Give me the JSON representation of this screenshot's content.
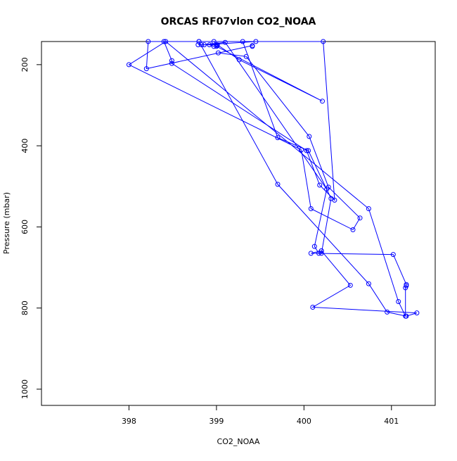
{
  "chart_data": {
    "type": "line",
    "title": "ORCAS RF07vlon CO2_NOAA",
    "xlabel": "CO2_NOAA",
    "ylabel": "Pressure (mbar)",
    "xlim": [
      397.0,
      401.5
    ],
    "ylim": [
      1040,
      143
    ],
    "y_reversed": true,
    "x_ticks": [
      "398",
      "399",
      "400",
      "401"
    ],
    "x_tick_values": [
      398,
      399,
      400,
      401
    ],
    "y_ticks": [
      "200",
      "400",
      "600",
      "800",
      "1000"
    ],
    "y_tick_values": [
      200,
      400,
      600,
      800,
      1000
    ],
    "grid": false,
    "legend": "none",
    "series_color": "#0000ff",
    "series": [
      {
        "x": [
          399.41,
          399.41,
          398.2,
          398.22,
          399.3,
          399.7,
          400.05,
          400.31,
          400.2,
          400.17,
          400.12,
          400.26,
          399.1,
          398.86,
          399.45
        ],
        "y": [
          155,
          153,
          210,
          143,
          143,
          380,
          412,
          530,
          665,
          665,
          648,
          507,
          145,
          151,
          143
        ]
      },
      {
        "x": [
          398.97,
          398.92,
          398.83,
          398.79,
          399.0,
          399.01,
          399.26,
          400.21,
          399.0,
          399.01,
          398.97,
          398.4,
          398.49,
          398.49,
          400.03,
          400.18,
          400.35,
          400.22,
          398.8
        ],
        "y": [
          155,
          151,
          151,
          151,
          151,
          151,
          188,
          290,
          155,
          153,
          143,
          143,
          190,
          197,
          412,
          497,
          534,
          143,
          143
        ]
      },
      {
        "x": [
          399.02,
          399.34,
          400.06,
          400.28,
          400.64,
          400.56,
          400.08,
          399.97,
          398.0,
          398.42,
          400.74,
          401.08,
          401.16,
          401.16,
          401.17,
          401.17,
          401.02,
          400.08,
          400.2,
          400.2,
          400.53,
          400.1,
          401.29,
          401.17,
          400.95,
          400.74,
          399.7,
          398.8
        ],
        "y": [
          171,
          180,
          377,
          502,
          578,
          607,
          555,
          410,
          200,
          143,
          555,
          784,
          820,
          750,
          745,
          742,
          668,
          665,
          659,
          659,
          744,
          798,
          812,
          820,
          810,
          740,
          495,
          143
        ]
      }
    ]
  }
}
